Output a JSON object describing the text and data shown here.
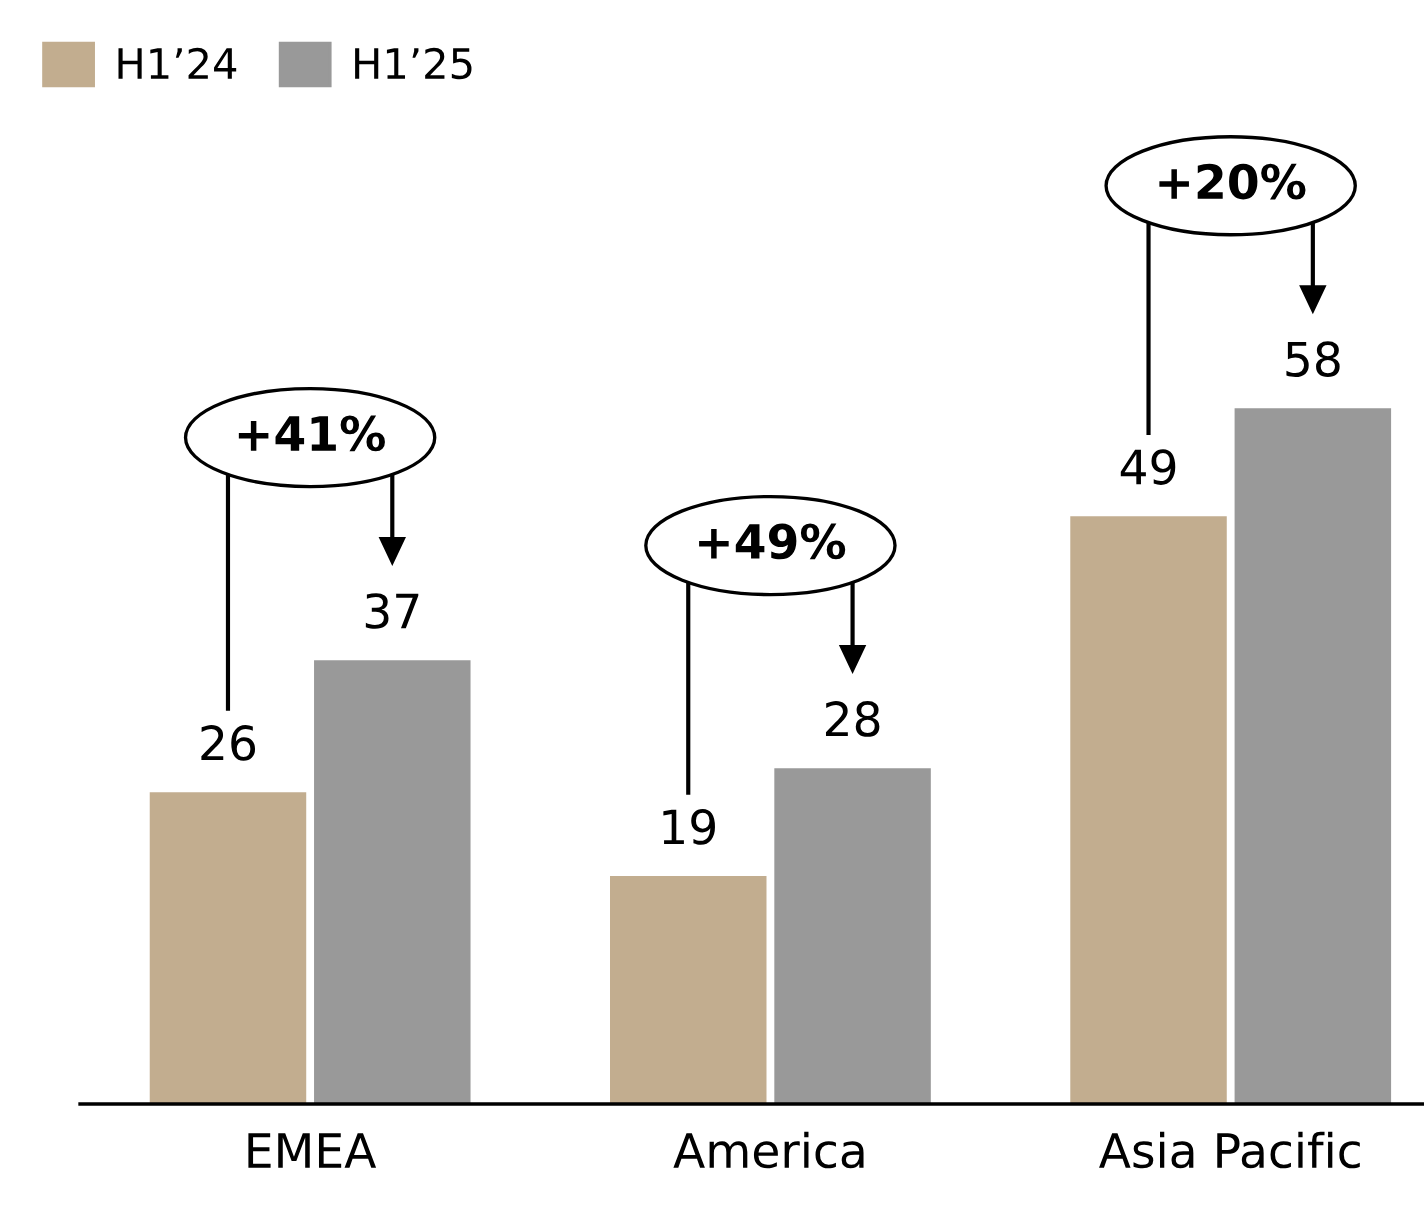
{
  "chart_data": {
    "type": "bar",
    "categories": [
      "EMEA",
      "America",
      "Asia Pacific"
    ],
    "series": [
      {
        "name": "H1’24",
        "color": "#c2ad8f",
        "values": [
          26,
          19,
          49
        ]
      },
      {
        "name": "H1’25",
        "color": "#999999",
        "values": [
          37,
          28,
          58
        ]
      }
    ],
    "data_labels": true,
    "legend": "top left",
    "grid": false,
    "annotations": [
      "+41%",
      "+49%",
      "+20%"
    ]
  }
}
